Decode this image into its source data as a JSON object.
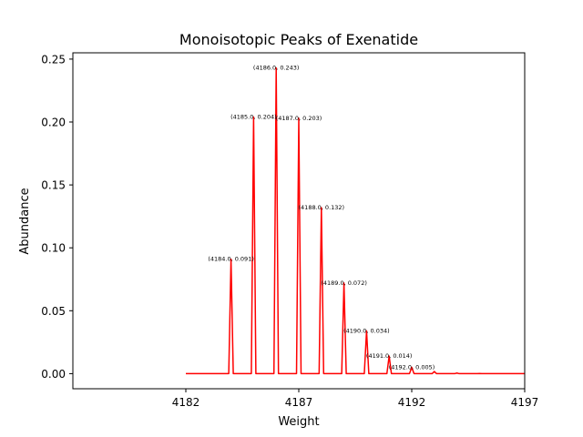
{
  "chart_data": {
    "type": "line",
    "title": "Monoisotopic Peaks of Exenatide",
    "xlabel": "Weight",
    "ylabel": "Abundance",
    "xlim": [
      4177,
      4197
    ],
    "ylim": [
      -0.012,
      0.255
    ],
    "x_ticks": [
      4182,
      4187,
      4192,
      4197
    ],
    "y_ticks": [
      0.0,
      0.05,
      0.1,
      0.15,
      0.2,
      0.25
    ],
    "y_tick_labels": [
      "0.00",
      "0.05",
      "0.10",
      "0.15",
      "0.20",
      "0.25"
    ],
    "line_color": "#ff0000",
    "grid": false,
    "x_start": 4182,
    "x_end": 4197,
    "peaks": [
      {
        "x": 4184,
        "y": 0.091
      },
      {
        "x": 4185,
        "y": 0.204
      },
      {
        "x": 4186,
        "y": 0.243
      },
      {
        "x": 4187,
        "y": 0.203
      },
      {
        "x": 4188,
        "y": 0.132
      },
      {
        "x": 4189,
        "y": 0.072
      },
      {
        "x": 4190,
        "y": 0.034
      },
      {
        "x": 4191,
        "y": 0.014
      },
      {
        "x": 4192,
        "y": 0.005
      },
      {
        "x": 4193,
        "y": 0.0017
      },
      {
        "x": 4194,
        "y": 0.0005
      },
      {
        "x": 4195,
        "y": 0.0001
      }
    ],
    "annotations": [
      {
        "x": 4184,
        "y": 0.091,
        "text": "(4184.0, 0.091)"
      },
      {
        "x": 4185,
        "y": 0.204,
        "text": "(4185.0, 0.204)"
      },
      {
        "x": 4186,
        "y": 0.243,
        "text": "(4186.0, 0.243)"
      },
      {
        "x": 4187,
        "y": 0.203,
        "text": "(4187.0, 0.203)"
      },
      {
        "x": 4188,
        "y": 0.132,
        "text": "(4188.0, 0.132)"
      },
      {
        "x": 4189,
        "y": 0.072,
        "text": "(4189.0, 0.072)"
      },
      {
        "x": 4190,
        "y": 0.034,
        "text": "(4190.0, 0.034)"
      },
      {
        "x": 4191,
        "y": 0.014,
        "text": "(4191.0, 0.014)"
      },
      {
        "x": 4192,
        "y": 0.005,
        "text": "(4192.0, 0.005)"
      }
    ]
  }
}
